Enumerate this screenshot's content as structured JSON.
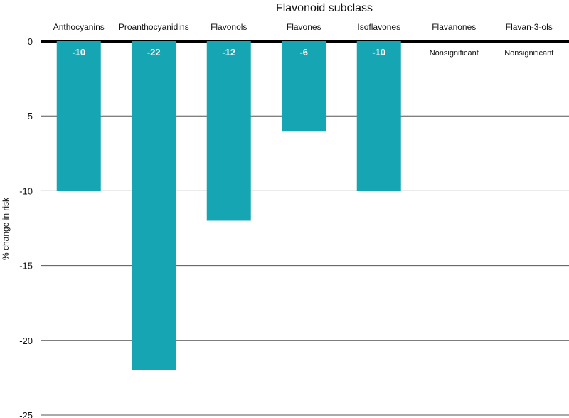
{
  "chart_data": {
    "type": "bar",
    "title": "Flavonoid subclass",
    "ylabel": "% change in risk",
    "xlabel": "",
    "categories": [
      "Anthocyanins",
      "Proanthocyanidins",
      "Flavonols",
      "Flavones",
      "Isoflavones",
      "Flavanones",
      "Flavan-3-ols"
    ],
    "values": [
      -10,
      -22,
      -12,
      -6,
      -10,
      null,
      null
    ],
    "bar_labels": [
      "-10",
      "-22",
      "-12",
      "-6",
      "-10",
      "Nonsignificant",
      "Nonsignificant"
    ],
    "ylim": [
      -25,
      0
    ],
    "yticks": [
      0,
      -5,
      -10,
      -15,
      -20,
      -25
    ],
    "grid": true,
    "legend": "none",
    "colors": {
      "bar": "#16a5b3",
      "grid": "#555555",
      "zero_line": "#000000"
    }
  }
}
